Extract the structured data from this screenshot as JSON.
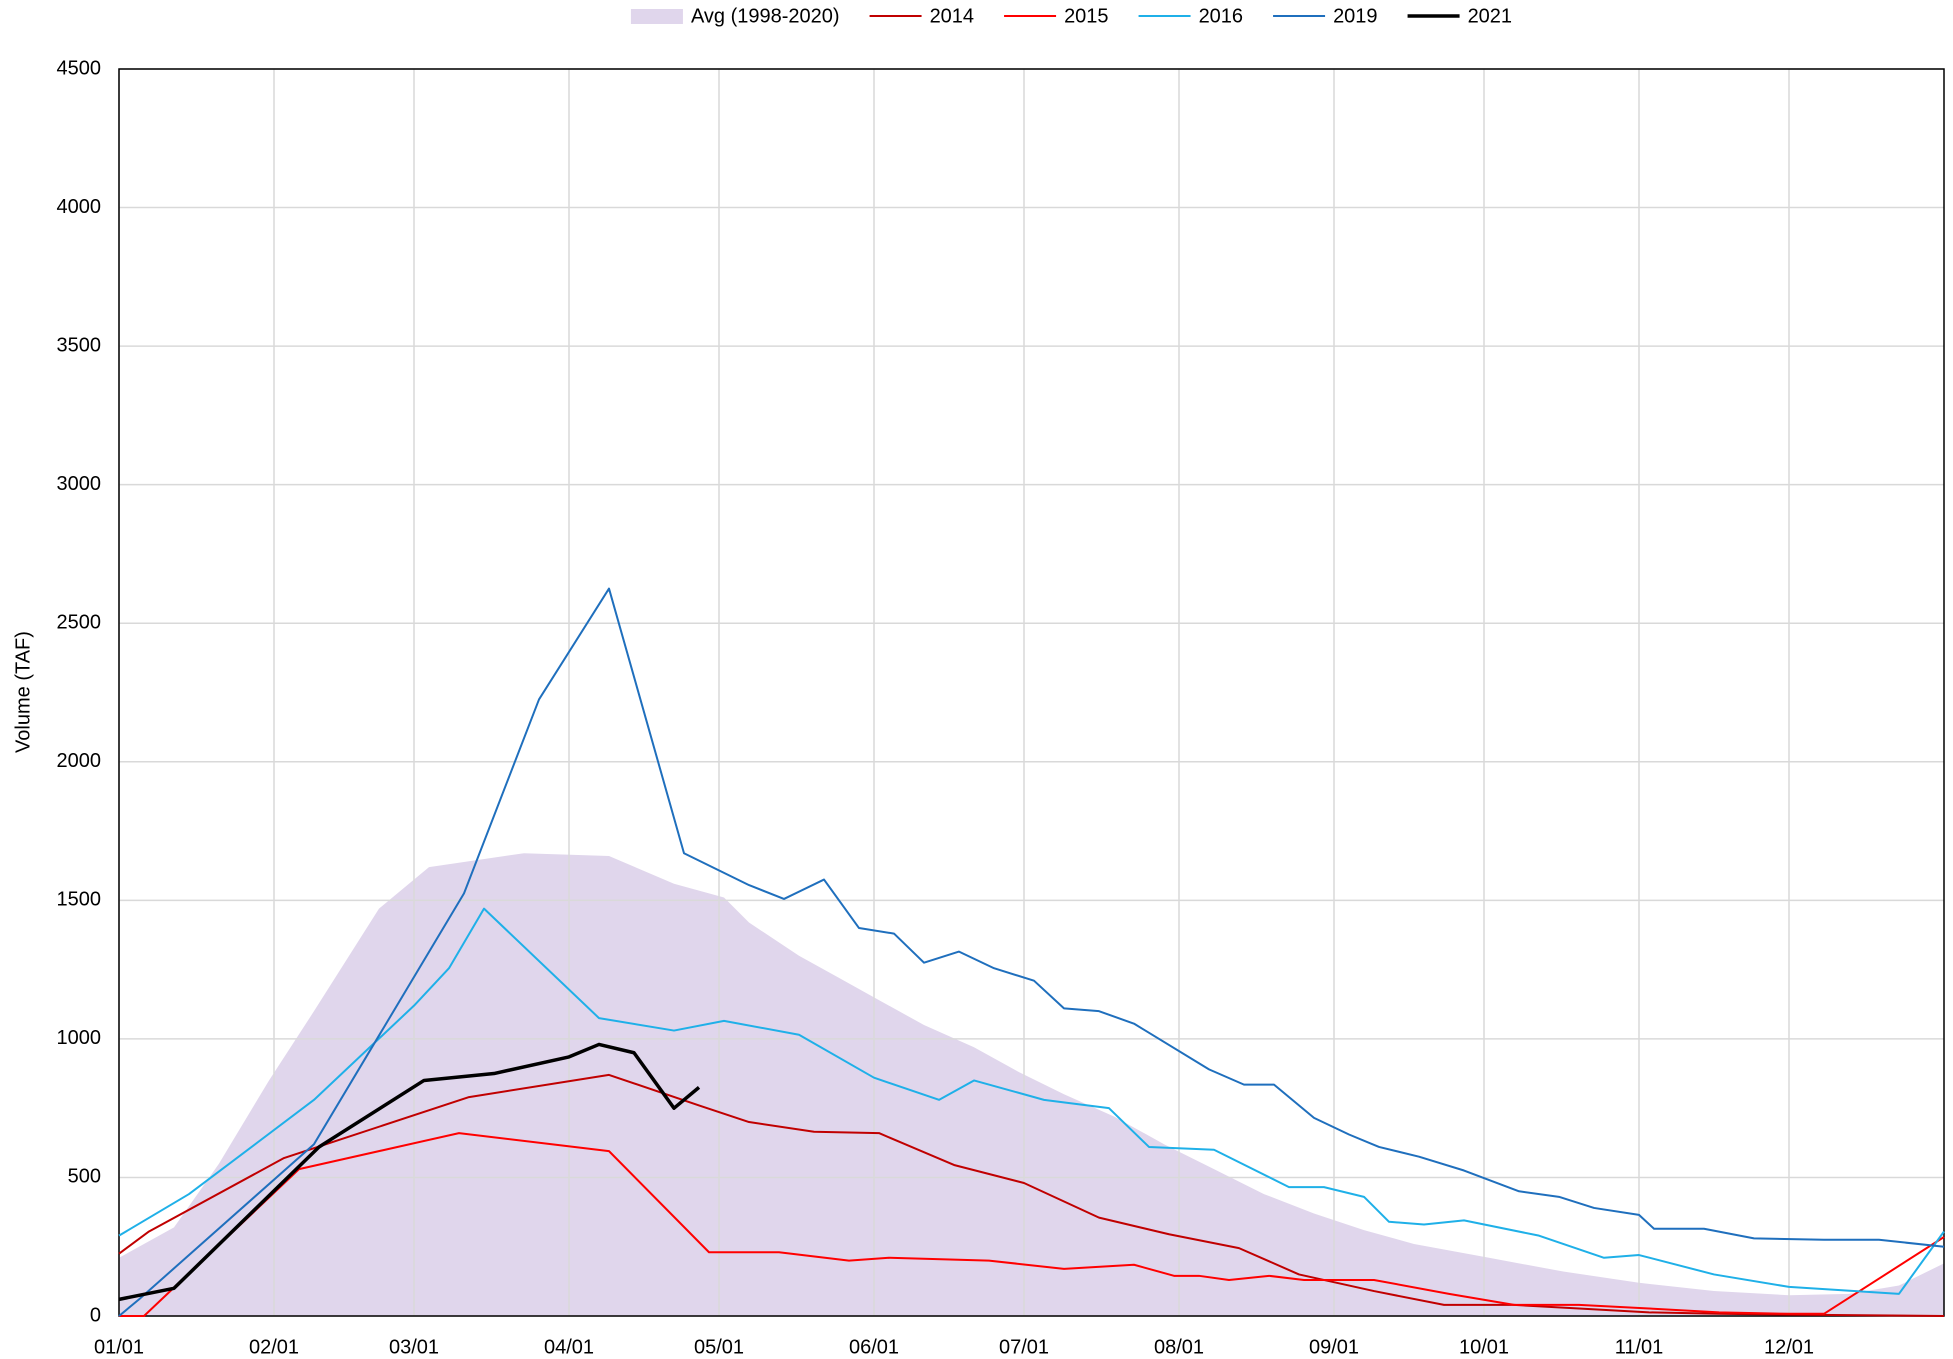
{
  "chart_data": {
    "type": "line",
    "ylabel": "Volume (TAF)",
    "legend": "top",
    "grid": true,
    "xlim": [
      0,
      365
    ],
    "xticks": [
      {
        "value": 0,
        "label": "01/01"
      },
      {
        "value": 31,
        "label": "02/01"
      },
      {
        "value": 59,
        "label": "03/01"
      },
      {
        "value": 90,
        "label": "04/01"
      },
      {
        "value": 120,
        "label": "05/01"
      },
      {
        "value": 151,
        "label": "06/01"
      },
      {
        "value": 181,
        "label": "07/01"
      },
      {
        "value": 212,
        "label": "08/01"
      },
      {
        "value": 243,
        "label": "09/01"
      },
      {
        "value": 273,
        "label": "10/01"
      },
      {
        "value": 304,
        "label": "11/01"
      },
      {
        "value": 334,
        "label": "12/01"
      }
    ],
    "ylim": [
      0,
      4500
    ],
    "yticks": [
      0,
      500,
      1000,
      1500,
      2000,
      2500,
      3000,
      3500,
      4000,
      4500
    ],
    "series": [
      {
        "name": "Avg (1998-2020)",
        "color": "#e0d6ec",
        "style": "area",
        "x": [
          0,
          11,
          20,
          30,
          39,
          52,
          62,
          81,
          98,
          111,
          121,
          126,
          136,
          144,
          151,
          161,
          171,
          180,
          189,
          199,
          209,
          219,
          229,
          239,
          249,
          259,
          274,
          289,
          304,
          319,
          334,
          346,
          356,
          365
        ],
        "values": [
          210,
          320,
          550,
          850,
          1100,
          1470,
          1620,
          1670,
          1660,
          1560,
          1510,
          1420,
          1300,
          1220,
          1150,
          1050,
          970,
          880,
          800,
          720,
          620,
          530,
          440,
          370,
          310,
          260,
          210,
          160,
          120,
          90,
          75,
          80,
          110,
          190
        ]
      },
      {
        "name": "2014",
        "color": "#c00000",
        "style": "line",
        "line_width": 2,
        "x": [
          0,
          6,
          33,
          70,
          98,
          116,
          126,
          139,
          152,
          167,
          181,
          196,
          210,
          224,
          236,
          251,
          265,
          279,
          292,
          306,
          320,
          334,
          365
        ],
        "values": [
          225,
          305,
          570,
          790,
          870,
          760,
          700,
          665,
          660,
          545,
          480,
          355,
          295,
          245,
          150,
          90,
          40,
          40,
          27,
          13,
          8,
          5,
          0
        ]
      },
      {
        "name": "2015",
        "color": "#ff0000",
        "style": "line",
        "line_width": 2,
        "x": [
          0,
          5,
          36,
          68,
          98,
          118,
          132,
          146,
          154,
          174,
          189,
          203,
          211,
          216,
          222,
          230,
          237,
          251,
          266,
          279,
          292,
          306,
          320,
          334,
          341,
          365
        ],
        "values": [
          0,
          0,
          530,
          660,
          595,
          230,
          230,
          200,
          210,
          200,
          170,
          185,
          145,
          145,
          130,
          145,
          130,
          130,
          80,
          40,
          40,
          27,
          13,
          8,
          8,
          285
        ]
      },
      {
        "name": "2016",
        "color": "#1fb0e8",
        "style": "line",
        "line_width": 2,
        "x": [
          0,
          14,
          39,
          59,
          66,
          73,
          96,
          111,
          121,
          136,
          151,
          164,
          171,
          185,
          198,
          206,
          219,
          234,
          241,
          249,
          254,
          261,
          269,
          284,
          297,
          304,
          319,
          334,
          356,
          365
        ],
        "values": [
          290,
          440,
          780,
          1120,
          1255,
          1470,
          1075,
          1030,
          1065,
          1015,
          860,
          780,
          850,
          780,
          750,
          610,
          600,
          465,
          465,
          430,
          340,
          330,
          345,
          290,
          210,
          220,
          150,
          105,
          80,
          305
        ]
      },
      {
        "name": "2019",
        "color": "#1f6fbd",
        "style": "line",
        "line_width": 2,
        "x": [
          0,
          4,
          39,
          69,
          84,
          98,
          113,
          126,
          133,
          141,
          148,
          155,
          161,
          168,
          175,
          183,
          189,
          196,
          203,
          218,
          225,
          231,
          239,
          246,
          252,
          260,
          269,
          280,
          288,
          295,
          304,
          307,
          317,
          327,
          341,
          352,
          365
        ],
        "values": [
          0,
          60,
          620,
          1525,
          2225,
          2625,
          1670,
          1555,
          1505,
          1575,
          1400,
          1380,
          1275,
          1315,
          1255,
          1210,
          1110,
          1100,
          1055,
          890,
          835,
          835,
          715,
          655,
          610,
          575,
          525,
          450,
          430,
          390,
          365,
          315,
          315,
          280,
          275,
          275,
          250
        ]
      },
      {
        "name": "2021",
        "color": "#000000",
        "style": "line",
        "line_width": 3.5,
        "x": [
          0,
          11,
          40,
          61,
          75,
          90,
          96,
          103,
          111,
          116
        ],
        "values": [
          60,
          100,
          610,
          850,
          875,
          935,
          980,
          950,
          750,
          825
        ]
      }
    ]
  }
}
